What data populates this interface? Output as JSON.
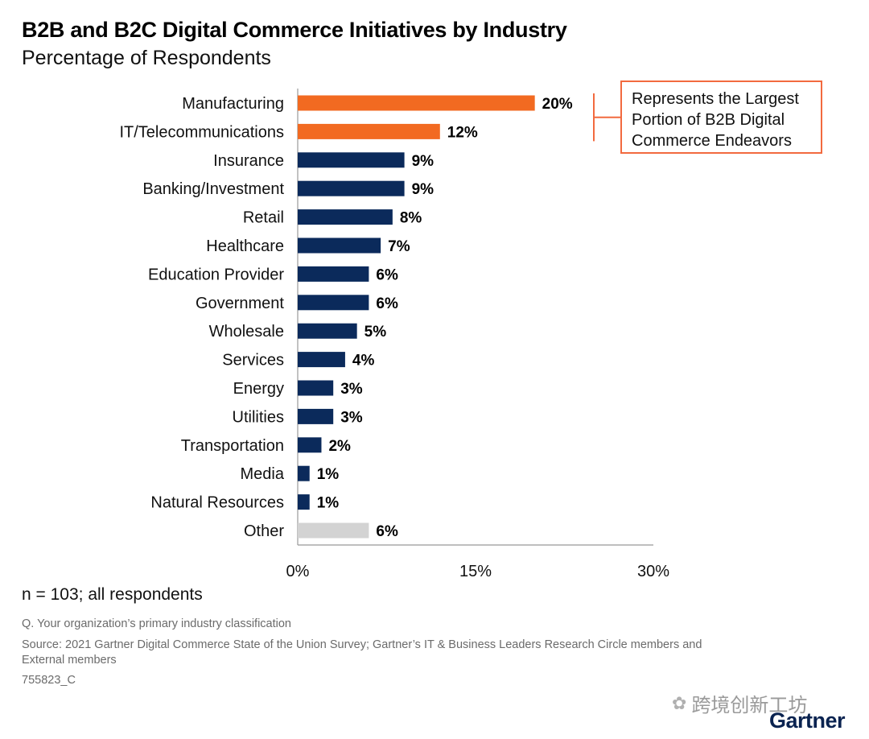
{
  "header": {
    "title": "B2B and B2C Digital Commerce Initiatives by Industry",
    "subtitle": "Percentage of Respondents"
  },
  "chart_data": {
    "type": "bar",
    "orientation": "horizontal",
    "title": "B2B and B2C Digital Commerce Initiatives by Industry",
    "subtitle": "Percentage of Respondents",
    "categories": [
      "Manufacturing",
      "IT/Telecommunications",
      "Insurance",
      "Banking/Investment",
      "Retail",
      "Healthcare",
      "Education Provider",
      "Government",
      "Wholesale",
      "Services",
      "Energy",
      "Utilities",
      "Transportation",
      "Media",
      "Natural Resources",
      "Other"
    ],
    "values": [
      20,
      12,
      9,
      9,
      8,
      7,
      6,
      6,
      5,
      4,
      3,
      3,
      2,
      1,
      1,
      6
    ],
    "value_labels": [
      "20%",
      "12%",
      "9%",
      "9%",
      "8%",
      "7%",
      "6%",
      "6%",
      "5%",
      "4%",
      "3%",
      "3%",
      "2%",
      "1%",
      "1%",
      "6%"
    ],
    "bar_colors": [
      "#f26a21",
      "#f26a21",
      "#0b2a5b",
      "#0b2a5b",
      "#0b2a5b",
      "#0b2a5b",
      "#0b2a5b",
      "#0b2a5b",
      "#0b2a5b",
      "#0b2a5b",
      "#0b2a5b",
      "#0b2a5b",
      "#0b2a5b",
      "#0b2a5b",
      "#0b2a5b",
      "#d3d3d3"
    ],
    "xlim": [
      0,
      30
    ],
    "x_ticks": [
      0,
      15,
      30
    ],
    "x_tick_labels": [
      "0%",
      "15%",
      "30%"
    ],
    "xlabel": "",
    "ylabel": "",
    "grid": false,
    "legend": "none",
    "annotation": "Represents the Largest Portion of B2B Digital Commerce Endeavors"
  },
  "callout": {
    "text": "Represents the Largest Portion of B2B Digital Commerce Endeavors",
    "border_color": "#f26a3f"
  },
  "footer": {
    "sample": "n = 103; all respondents",
    "question": "Q. Your organization’s primary industry classification",
    "source": "Source: 2021 Gartner Digital Commerce State of the Union Survey; Gartner’s IT & Business Leaders Research Circle members and External members",
    "code": "755823_C"
  },
  "watermark": {
    "text": "跨境创新工坊",
    "icon": "wechat-icon"
  },
  "logo": {
    "text": "Gartner",
    "color": "#0a2350"
  }
}
